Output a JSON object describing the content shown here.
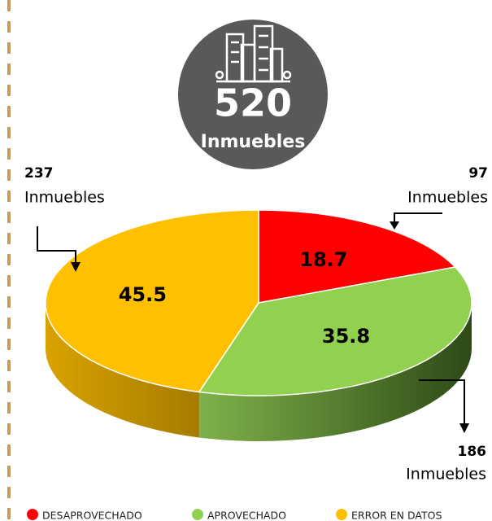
{
  "chart_data": {
    "type": "pie",
    "total": 520,
    "total_label": "Inmuebles",
    "categories": [
      "DESAPROVECHADO",
      "APROVECHADO",
      "ERROR EN DATOS"
    ],
    "values": [
      18.7,
      35.8,
      45.5
    ],
    "colors": [
      "#ff0000",
      "#92d050",
      "#ffc000"
    ],
    "counts": [
      97,
      186,
      237
    ],
    "count_labels": [
      "Inmuebles",
      "Inmuebles",
      "Inmuebles"
    ],
    "legend": "bottom"
  }
}
